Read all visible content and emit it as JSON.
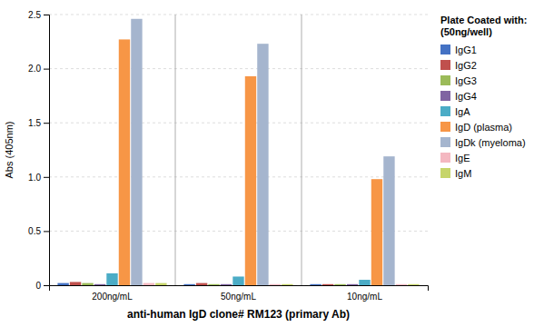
{
  "chart_data": {
    "type": "bar",
    "categories": [
      "200ng/mL",
      "50ng/mL",
      "10ng/mL"
    ],
    "series": [
      {
        "name": "IgG1",
        "color": "#4472C4",
        "values": [
          0.02,
          0.01,
          0.01
        ]
      },
      {
        "name": "IgG2",
        "color": "#C0504D",
        "values": [
          0.03,
          0.02,
          0.01
        ]
      },
      {
        "name": "IgG3",
        "color": "#9BBB59",
        "values": [
          0.02,
          0.01,
          0.01
        ]
      },
      {
        "name": "IgG4",
        "color": "#8064A2",
        "values": [
          0.01,
          0.01,
          0.01
        ]
      },
      {
        "name": "IgA",
        "color": "#4BACC6",
        "values": [
          0.11,
          0.08,
          0.05
        ]
      },
      {
        "name": "IgD (plasma)",
        "color": "#F79646",
        "values": [
          2.27,
          1.93,
          0.98
        ]
      },
      {
        "name": "IgDk (myeloma)",
        "color": "#A5B5CE",
        "values": [
          2.46,
          2.23,
          1.19
        ]
      },
      {
        "name": "IgE",
        "color": "#F4B8C1",
        "values": [
          0.02,
          0.01,
          0.01
        ]
      },
      {
        "name": "IgM",
        "color": "#C6D56A",
        "values": [
          0.02,
          0.01,
          0.01
        ]
      }
    ],
    "x_label": "anti-human IgD clone# RM123 (primary Ab)",
    "y_label": "Abs (405nm)",
    "ylim": [
      0,
      2.5
    ],
    "yticks": [
      0,
      0.5,
      {
        "value": 1,
        "label": "1.0"
      },
      1.5,
      {
        "value": 2,
        "label": "2.0"
      },
      2.5
    ],
    "legend_title": "Plate Coated with:\n(50ng/well)",
    "legend": "right",
    "grid": true
  }
}
